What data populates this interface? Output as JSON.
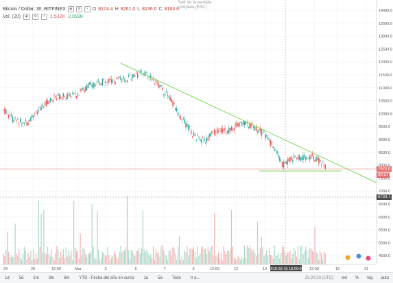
{
  "legend": {
    "title": "Bitcoin / Dollar, 30, BITFINEX",
    "open_label": "O",
    "open": "8174.4",
    "high_label": "H",
    "high": "8261.0",
    "low_label": "L",
    "low": "8136.0",
    "close_label": "C",
    "close": "8163.6"
  },
  "indicator": {
    "name": "Vol. (20)",
    "value1": "1.532K",
    "value2": "2.019K"
  },
  "tooltip": "Salir de la pantalla completa (ESC)",
  "price_axis": [
    "14000.0",
    "13500.0",
    "13000.0",
    "12500.0",
    "12000.0",
    "11500.0",
    "11000.0",
    "10500.0",
    "10000.0",
    "9500.0",
    "9000.0",
    "8500.0",
    "8000.0",
    "7500.0",
    "7000.0",
    "6500.0",
    "6000.0",
    "5500.0",
    "5000.0",
    "4500.0"
  ],
  "time_axis": [
    "24",
    "26",
    "12:00",
    "Mar",
    "3",
    "5",
    "7",
    "9",
    "12:00",
    "12",
    "14",
    "12:00",
    "19",
    "21"
  ],
  "crosshair_date": "2018-03-15 18:00:00",
  "tags": {
    "current_price": "7820.8",
    "countdown": "00:37",
    "crosshair_price": "6733.7"
  },
  "colors": {
    "up": "#26a69a",
    "down": "#ef5350",
    "trendline": "#7ed957",
    "price_line": "#e57373"
  },
  "bottombar": {
    "ranges": [
      "1d",
      "5d",
      "1m",
      "3m",
      "6m",
      "YTD - Fecha del año en curso",
      "1a",
      "5a",
      "Todo"
    ],
    "goto_label": "Ir a...",
    "time": "23:20:33 (UTC)",
    "options": [
      "ext",
      "%",
      "log",
      "auto"
    ]
  }
}
